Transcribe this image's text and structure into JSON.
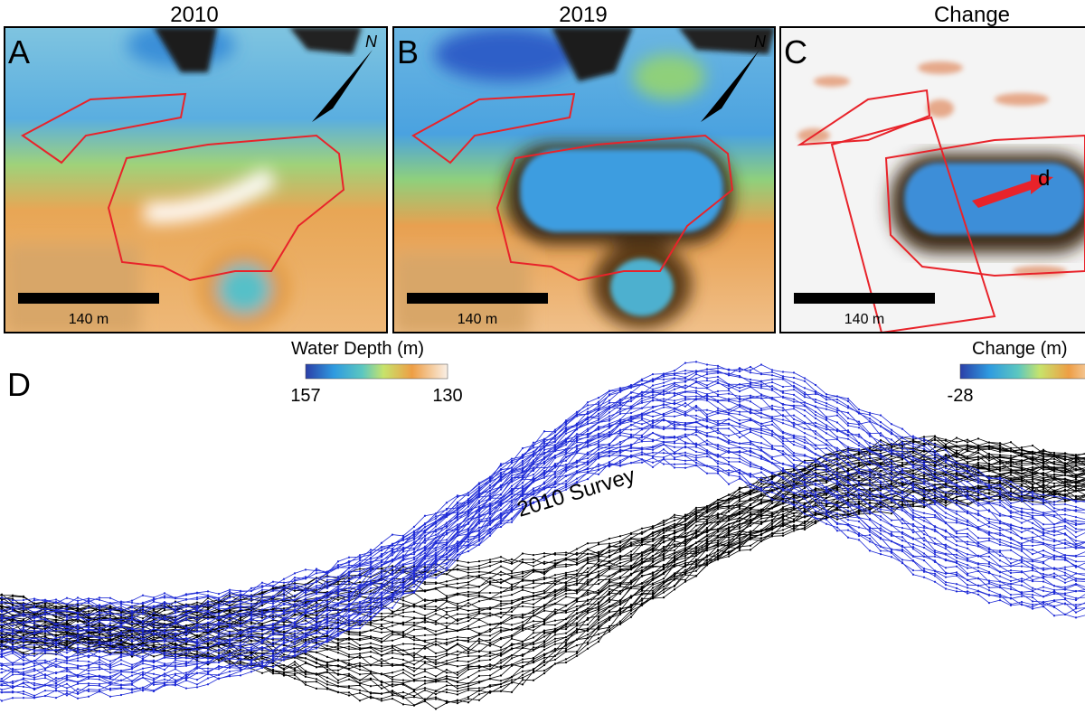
{
  "panels": [
    {
      "title": "2010",
      "letter": "A",
      "scale_label": "140 m",
      "north": "N"
    },
    {
      "title": "2019",
      "letter": "B",
      "scale_label": "140 m",
      "north": "N"
    },
    {
      "title": "Change",
      "letter": "C",
      "scale_label": "140 m",
      "marker": "d"
    }
  ],
  "colorbars": [
    {
      "label": "Water Depth (m)",
      "min_label": "157",
      "max_label": "130"
    },
    {
      "label": "Change (m)",
      "min_label": "-28"
    }
  ],
  "profile": {
    "letter": "D",
    "annotation": "2010 Survey"
  }
}
